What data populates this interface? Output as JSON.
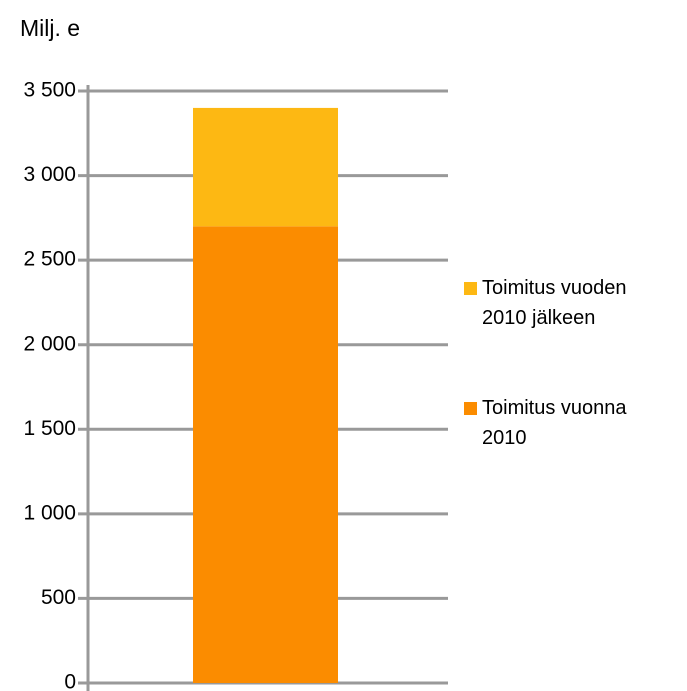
{
  "chart_data": {
    "type": "stacked_bar",
    "y_label": "Milj. e",
    "categories": [
      null
    ],
    "series": [
      {
        "name": "Toimitus vuonna 2010",
        "color": "#fb8c00",
        "values": [
          2700
        ]
      },
      {
        "name": "Toimitus vuoden 2010 jälkeen",
        "color": "#fdb813",
        "values": [
          700
        ]
      }
    ],
    "ylim": [
      0,
      3500
    ],
    "yticks": [
      0,
      500,
      {
        "value": 1000,
        "label": "1 000"
      },
      {
        "value": 1500,
        "label": "1 500"
      },
      {
        "value": 2000,
        "label": "2 000"
      },
      {
        "value": 2500,
        "label": "2 500"
      },
      {
        "value": 3000,
        "label": "3 000"
      },
      {
        "value": 3500,
        "label": "3 500"
      }
    ],
    "grid": true,
    "legend": "right"
  }
}
